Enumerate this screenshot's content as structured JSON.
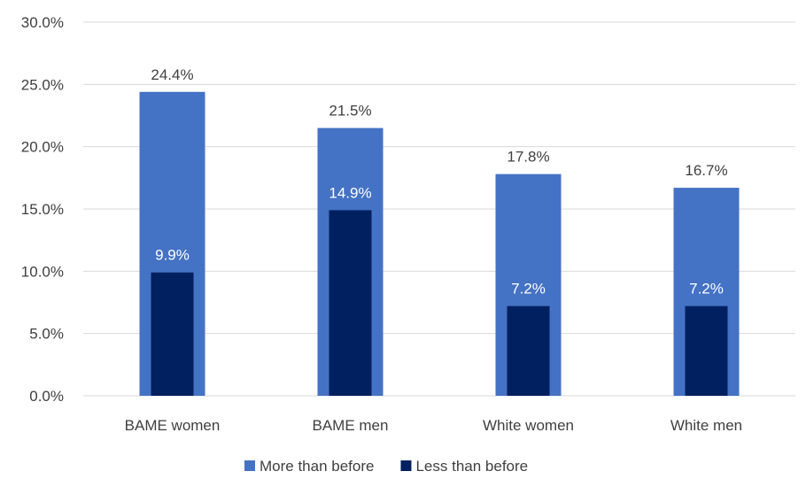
{
  "chart_data": {
    "type": "bar",
    "title": "",
    "xlabel": "",
    "ylabel": "",
    "categories": [
      "BAME women",
      "BAME men",
      "White women",
      "White men"
    ],
    "series": [
      {
        "name": "More than before",
        "values": [
          24.4,
          21.5,
          17.8,
          16.7
        ],
        "color": "#4472C4",
        "label_color": "#404040"
      },
      {
        "name": "Less than before",
        "values": [
          9.9,
          14.9,
          7.2,
          7.2
        ],
        "color": "#002060",
        "label_color": "#FFFFFF"
      }
    ],
    "data_labels": {
      "More than before": [
        "24.4%",
        "21.5%",
        "17.8%",
        "16.7%"
      ],
      "Less than before": [
        "9.9%",
        "14.9%",
        "7.2%",
        "7.2%"
      ]
    },
    "ylim": [
      0,
      30
    ],
    "yticks": [
      0,
      5,
      10,
      15,
      20,
      25,
      30
    ],
    "ytick_labels": [
      "0.0%",
      "5.0%",
      "10.0%",
      "15.0%",
      "20.0%",
      "25.0%",
      "30.0%"
    ],
    "grid": true,
    "gridline_color": "#D9D9D9",
    "overlapped_bars": true,
    "legend_position": "bottom"
  }
}
